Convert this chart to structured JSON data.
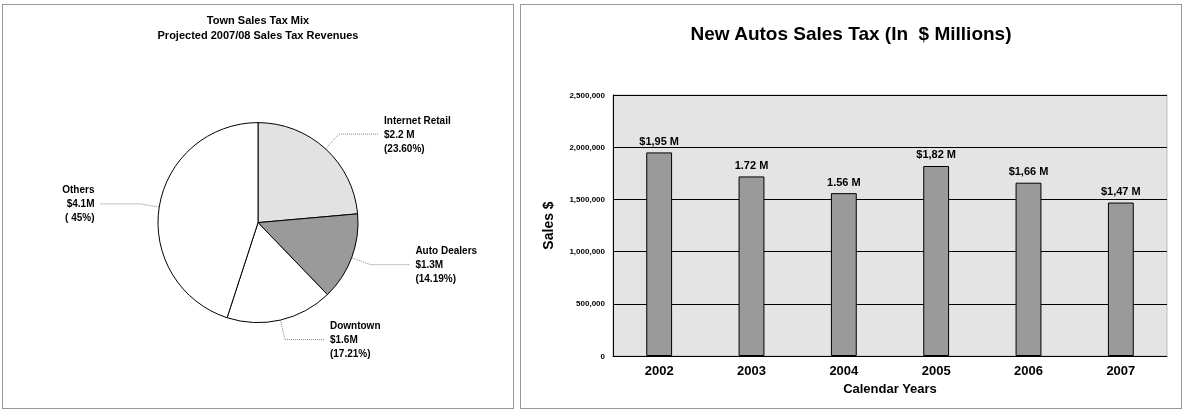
{
  "chart_data": [
    {
      "type": "pie",
      "title": "Town Sales Tax Mix",
      "subtitle": "Projected 2007/08 Sales Tax Revenues",
      "categories": [
        "Internet Retail",
        "Auto Dealers",
        "Downtown",
        "Others"
      ],
      "values": [
        23.6,
        14.19,
        17.21,
        45
      ],
      "colors": [
        "#e2e2e2",
        "#9a9a9a",
        "#ffffff",
        "#ffffff"
      ],
      "value_labels": [
        "$2.2 M\n(23.60%)",
        "$1.3M\n(14.19%)",
        "$1.6M\n(17.21%)",
        "$4.1M\n( 45%)"
      ]
    },
    {
      "type": "bar",
      "title": "New Autos Sales Tax (In  $ Millions)",
      "xlabel": "Calendar Years",
      "ylabel": "Sales $",
      "categories": [
        "2002",
        "2003",
        "2004",
        "2005",
        "2006",
        "2007"
      ],
      "values": [
        1950000,
        1720000,
        1560000,
        1820000,
        1660000,
        1470000
      ],
      "color": "#9a9a9a",
      "value_labels": [
        "$1,95 M",
        "1.72 M",
        "1.56 M",
        "$1,82 M",
        "$1,66 M",
        "$1,47 M"
      ],
      "ylim": [
        0,
        2500000
      ],
      "yticks": [
        {
          "value": 0,
          "label": "0"
        },
        {
          "value": 500000,
          "label": "500,000"
        },
        {
          "value": 1000000,
          "label": "1,000,000"
        },
        {
          "value": 1500000,
          "label": "1,500,000"
        },
        {
          "value": 2000000,
          "label": "2,000,000"
        },
        {
          "value": 2500000,
          "label": "2,500,000"
        }
      ],
      "grid": "y"
    }
  ]
}
